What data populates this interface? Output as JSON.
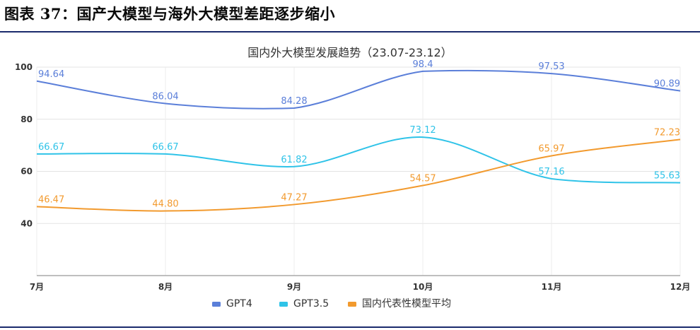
{
  "figure": {
    "caption": "图表 37：国产大模型与海外大模型差距逐步缩小"
  },
  "chart_data": {
    "type": "line",
    "title": "国内外大模型发展趋势（23.07-23.12）",
    "categories": [
      "7月",
      "8月",
      "9月",
      "10月",
      "11月",
      "12月"
    ],
    "ylim": [
      20,
      100
    ],
    "yticks": [
      40,
      60,
      80,
      100
    ],
    "grid": true,
    "legend_position": "bottom",
    "series": [
      {
        "name": "GPT4",
        "color": "#5b7fd9",
        "values": [
          94.64,
          86.04,
          84.28,
          98.4,
          97.53,
          90.89
        ],
        "labels": [
          "94.64",
          "86.04",
          "84.28",
          "98.4",
          "97.53",
          "90.89"
        ]
      },
      {
        "name": "GPT3.5",
        "color": "#2fc3e8",
        "values": [
          66.67,
          66.67,
          61.82,
          73.12,
          57.16,
          55.63
        ],
        "labels": [
          "66.67",
          "66.67",
          "61.82",
          "73.12",
          "57.16",
          "55.63"
        ]
      },
      {
        "name": "国内代表性模型平均",
        "color": "#f29a2e",
        "values": [
          46.47,
          44.8,
          47.27,
          54.57,
          65.97,
          72.23
        ],
        "labels": [
          "46.47",
          "44.80",
          "47.27",
          "54.57",
          "65.97",
          "72.23"
        ]
      }
    ]
  }
}
